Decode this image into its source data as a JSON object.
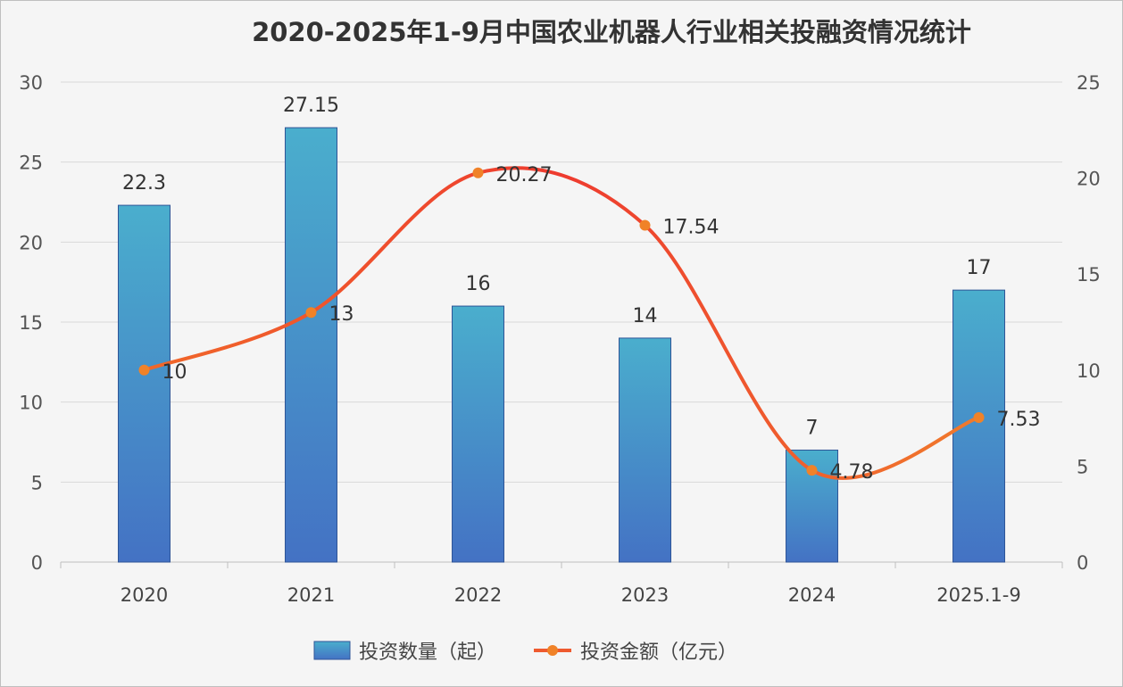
{
  "chart_data": {
    "type": "bar+line",
    "title": "2020-2025年1-9月中国农业机器人行业相关投融资情况统计",
    "categories": [
      "2020",
      "2021",
      "2022",
      "2023",
      "2024",
      "2025.1-9"
    ],
    "series": [
      {
        "name": "投资数量（起）",
        "type": "bar",
        "axis": "left",
        "values": [
          22.3,
          27.15,
          16,
          14,
          7,
          17
        ],
        "color": "#4aaecd",
        "color_bottom": "#4472c4"
      },
      {
        "name": "投资金额（亿元）",
        "type": "line",
        "axis": "right",
        "smooth": true,
        "values": [
          10,
          13,
          20.27,
          17.54,
          4.78,
          7.53
        ],
        "color": "#ee3b2f",
        "marker_color": "#f08228"
      }
    ],
    "left_axis": {
      "ylim": [
        0,
        30
      ],
      "ticks": [
        0,
        5,
        10,
        15,
        20,
        25,
        30
      ]
    },
    "right_axis": {
      "ylim": [
        0,
        25
      ],
      "ticks": [
        0,
        5,
        10,
        15,
        20,
        25
      ]
    },
    "grid": true,
    "legend": "bottom"
  }
}
